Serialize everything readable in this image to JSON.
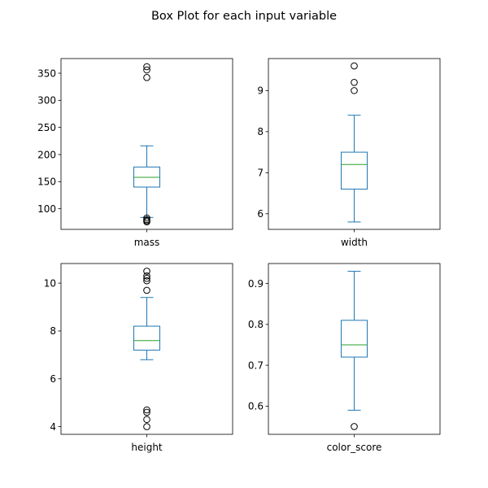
{
  "chart_data": {
    "type": "box",
    "title": "Box Plot for each input variable",
    "colors": {
      "box": "#1f77b4",
      "median": "#2ca02c",
      "flier": "#000000"
    },
    "panels": [
      {
        "label": "mass",
        "ylim": [
          62,
          377
        ],
        "yticks": [
          100,
          150,
          200,
          250,
          300,
          350
        ],
        "whisker_low": 84,
        "q1": 140,
        "median": 158,
        "q3": 177,
        "whisker_high": 216,
        "fliers": [
          76,
          78,
          80,
          83,
          342,
          356,
          362
        ]
      },
      {
        "label": "width",
        "ylim": [
          5.62,
          9.78
        ],
        "yticks": [
          6,
          7,
          8,
          9
        ],
        "whisker_low": 5.8,
        "q1": 6.6,
        "median": 7.2,
        "q3": 7.5,
        "whisker_high": 8.4,
        "fliers": [
          9.0,
          9.2,
          9.6
        ]
      },
      {
        "label": "height",
        "ylim": [
          3.68,
          10.82
        ],
        "yticks": [
          4,
          6,
          8,
          10
        ],
        "whisker_low": 6.8,
        "q1": 7.2,
        "median": 7.6,
        "q3": 8.2,
        "whisker_high": 9.4,
        "fliers": [
          4.0,
          4.3,
          4.6,
          4.7,
          9.7,
          10.1,
          10.2,
          10.3,
          10.5
        ]
      },
      {
        "label": "color_score",
        "ylim": [
          0.531,
          0.949
        ],
        "yticks": [
          0.6,
          0.7,
          0.8,
          0.9
        ],
        "whisker_low": 0.59,
        "q1": 0.72,
        "median": 0.75,
        "q3": 0.81,
        "whisker_high": 0.93,
        "fliers": [
          0.55
        ]
      }
    ]
  }
}
